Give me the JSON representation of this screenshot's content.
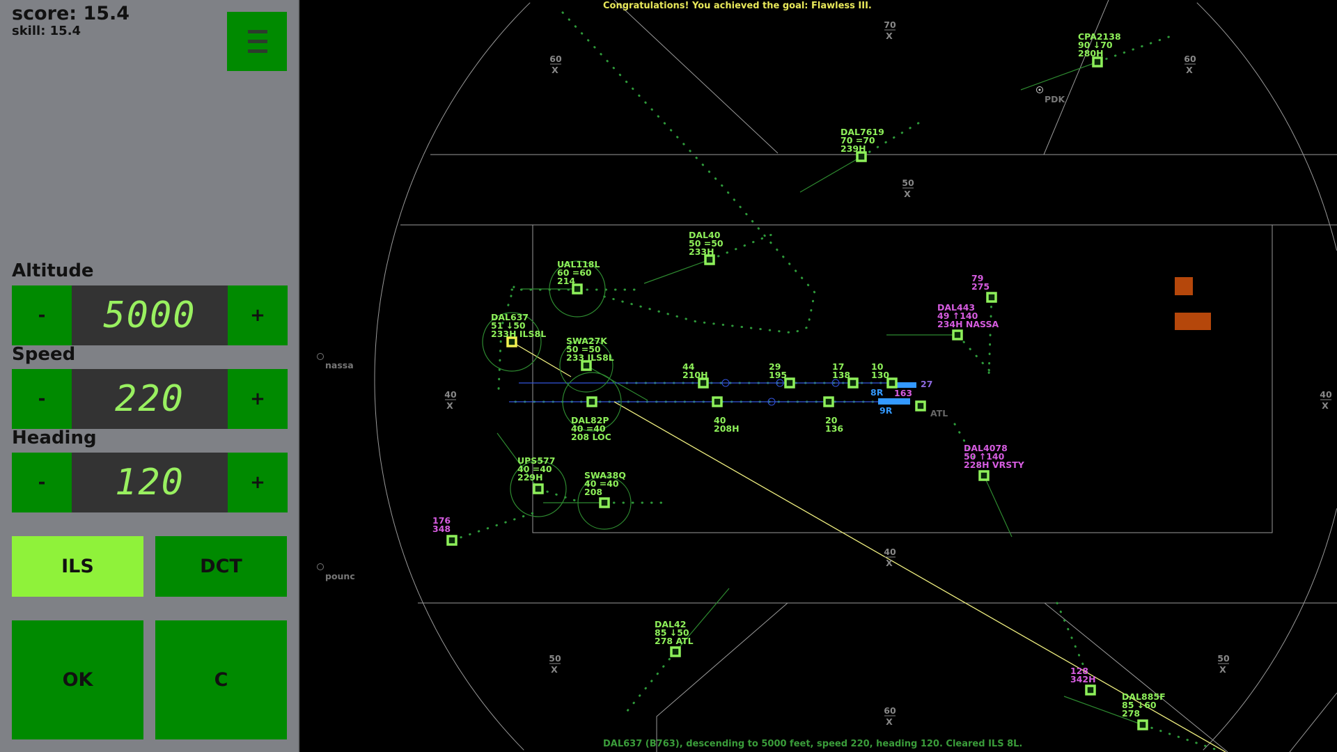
{
  "sidebar": {
    "score": "score: 15.4",
    "skill": "skill: 15.4",
    "menu_icon": "hamburger-menu-icon",
    "altitude": {
      "label": "Altitude",
      "minus": "-",
      "value": "5000",
      "plus": "+"
    },
    "speed": {
      "label": "Speed",
      "minus": "-",
      "value": "220",
      "plus": "+"
    },
    "heading": {
      "label": "Heading",
      "minus": "-",
      "value": "120",
      "plus": "+"
    },
    "ils_label": "ILS",
    "dct_label": "DCT",
    "ok_label": "OK",
    "c_label": "C",
    "active_mode": "ILS"
  },
  "radar": {
    "top_message": "Congratulations! You achieved the goal: Flawless III.",
    "bottom_message": "DAL637 (B763), descending to 5000 feet, speed 220, heading 120. Cleared ILS 8L.",
    "colors": {
      "own": "#8ef05a",
      "other": "#d65ce0",
      "selected": "#f0f050",
      "runway": "#3399ff",
      "terrain": "#b5470b"
    },
    "altitude_markers": [
      {
        "value": "60",
        "sub": "X"
      },
      {
        "value": "70",
        "sub": "X"
      },
      {
        "value": "60",
        "sub": "X"
      },
      {
        "value": "50",
        "sub": "X"
      },
      {
        "value": "40",
        "sub": "X"
      },
      {
        "value": "40",
        "sub": "X"
      },
      {
        "value": "40",
        "sub": "X"
      },
      {
        "value": "50",
        "sub": "X"
      },
      {
        "value": "50",
        "sub": "X"
      },
      {
        "value": "60",
        "sub": "X"
      }
    ],
    "fixes": [
      {
        "name": "nassa"
      },
      {
        "name": "pounc"
      },
      {
        "name": "PDK"
      }
    ],
    "runway_labels": [
      "8R",
      "9R",
      "27",
      "ATL"
    ],
    "aircraft": [
      {
        "lines": [
          "CPA2138",
          "90 ↓70",
          "280H"
        ],
        "type": "own"
      },
      {
        "lines": [
          "DAL7619",
          "70 =70",
          "239H"
        ],
        "type": "own"
      },
      {
        "lines": [
          "DAL40",
          "50 =50",
          "233H"
        ],
        "type": "own"
      },
      {
        "lines": [
          "UAL118L",
          "60 =60",
          "214"
        ],
        "type": "own"
      },
      {
        "lines": [
          "DAL637",
          "51 ↓50",
          "233H ILS8L"
        ],
        "type": "selected"
      },
      {
        "lines": [
          "SWA27K",
          "50 =50",
          "233  ILS8L"
        ],
        "type": "own"
      },
      {
        "lines": [
          "DAL82P",
          "40 =40",
          "208  LOC"
        ],
        "type": "own"
      },
      {
        "lines": [
          "44",
          "210H"
        ],
        "type": "own"
      },
      {
        "lines": [
          "29",
          "195"
        ],
        "type": "own"
      },
      {
        "lines": [
          "17",
          "138"
        ],
        "type": "own"
      },
      {
        "lines": [
          "10",
          "130"
        ],
        "type": "own"
      },
      {
        "lines": [
          "40",
          "208H"
        ],
        "type": "own"
      },
      {
        "lines": [
          "20",
          "136"
        ],
        "type": "own"
      },
      {
        "lines": [
          "163"
        ],
        "type": "other"
      },
      {
        "lines": [
          "DAL443",
          "49 ↑140",
          "234H NASSA"
        ],
        "type": "other"
      },
      {
        "lines": [
          "79",
          "275"
        ],
        "type": "other"
      },
      {
        "lines": [
          "DAL4078",
          "50 ↑140",
          "228H VRSTY"
        ],
        "type": "other"
      },
      {
        "lines": [
          "UPS577",
          "40 =40",
          "229H"
        ],
        "type": "own"
      },
      {
        "lines": [
          "SWA38Q",
          "40 =40",
          "208"
        ],
        "type": "own"
      },
      {
        "lines": [
          "176",
          "348"
        ],
        "type": "other"
      },
      {
        "lines": [
          "DAL42",
          "85 ↓50",
          "278  ATL"
        ],
        "type": "own"
      },
      {
        "lines": [
          "128",
          "342H"
        ],
        "type": "other"
      },
      {
        "lines": [
          "DAL885F",
          "85 ↓60",
          "278"
        ],
        "type": "own"
      }
    ]
  }
}
